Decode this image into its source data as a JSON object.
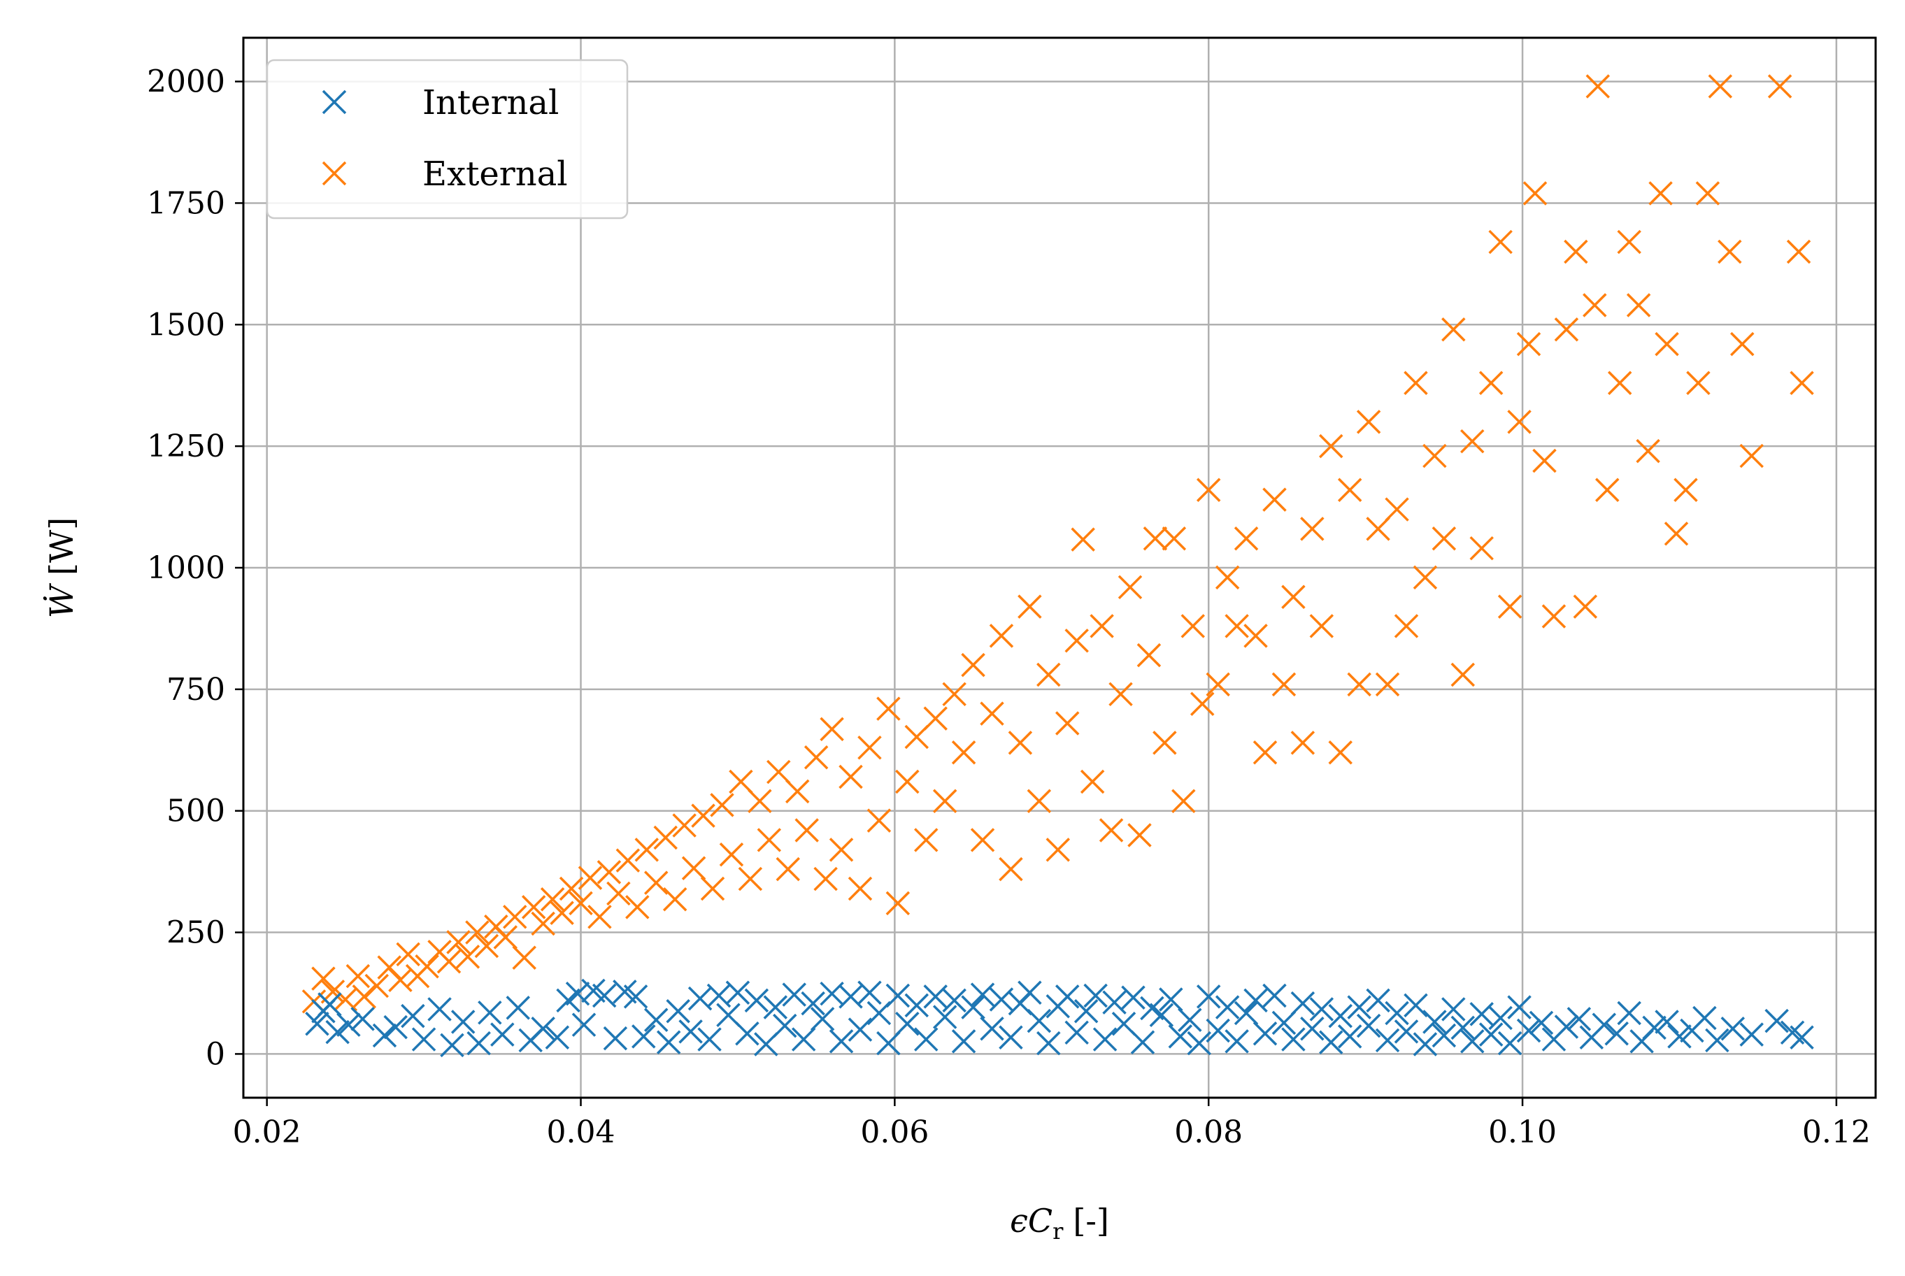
{
  "chart_data": {
    "type": "scatter",
    "marker": "x",
    "xlabel": "ϵC",
    "xlabel_sub": "r",
    "xlabel_unit": "[-]",
    "ylabel": "Ẇ",
    "ylabel_unit": "[W]",
    "xlim": [
      0.0185,
      0.1225
    ],
    "ylim": [
      -90,
      2090
    ],
    "xticks": [
      0.02,
      0.04,
      0.06,
      0.08,
      0.1,
      0.12
    ],
    "xtick_labels": [
      "0.02",
      "0.04",
      "0.06",
      "0.08",
      "0.10",
      "0.12"
    ],
    "yticks": [
      0,
      250,
      500,
      750,
      1000,
      1250,
      1500,
      1750,
      2000
    ],
    "ytick_labels": [
      "0",
      "250",
      "500",
      "750",
      "1000",
      "1250",
      "1500",
      "1750",
      "2000"
    ],
    "grid": true,
    "legend_position": "upper left",
    "series": [
      {
        "name": "Internal",
        "color": "#1f77b4",
        "points": [
          [
            0.0232,
            62
          ],
          [
            0.0236,
            88
          ],
          [
            0.024,
            102
          ],
          [
            0.0245,
            45
          ],
          [
            0.0252,
            60
          ],
          [
            0.0261,
            72
          ],
          [
            0.0275,
            38
          ],
          [
            0.0282,
            55
          ],
          [
            0.0293,
            78
          ],
          [
            0.03,
            30
          ],
          [
            0.031,
            92
          ],
          [
            0.0318,
            18
          ],
          [
            0.0325,
            66
          ],
          [
            0.0335,
            22
          ],
          [
            0.0342,
            85
          ],
          [
            0.035,
            40
          ],
          [
            0.036,
            95
          ],
          [
            0.0368,
            28
          ],
          [
            0.0376,
            52
          ],
          [
            0.0385,
            34
          ],
          [
            0.0392,
            110
          ],
          [
            0.0398,
            124
          ],
          [
            0.0402,
            60
          ],
          [
            0.0408,
            130
          ],
          [
            0.0415,
            120
          ],
          [
            0.0422,
            32
          ],
          [
            0.0428,
            128
          ],
          [
            0.0435,
            118
          ],
          [
            0.044,
            36
          ],
          [
            0.0448,
            70
          ],
          [
            0.0456,
            24
          ],
          [
            0.0462,
            88
          ],
          [
            0.047,
            46
          ],
          [
            0.0476,
            114
          ],
          [
            0.0482,
            30
          ],
          [
            0.0488,
            120
          ],
          [
            0.0494,
            80
          ],
          [
            0.05,
            126
          ],
          [
            0.0506,
            42
          ],
          [
            0.0512,
            110
          ],
          [
            0.0518,
            20
          ],
          [
            0.0524,
            96
          ],
          [
            0.053,
            58
          ],
          [
            0.0536,
            122
          ],
          [
            0.0542,
            30
          ],
          [
            0.0548,
            104
          ],
          [
            0.0554,
            72
          ],
          [
            0.056,
            124
          ],
          [
            0.0566,
            26
          ],
          [
            0.0572,
            118
          ],
          [
            0.0578,
            50
          ],
          [
            0.0584,
            126
          ],
          [
            0.059,
            84
          ],
          [
            0.0596,
            22
          ],
          [
            0.0602,
            120
          ],
          [
            0.0608,
            62
          ],
          [
            0.0614,
            100
          ],
          [
            0.062,
            30
          ],
          [
            0.0626,
            118
          ],
          [
            0.0632,
            76
          ],
          [
            0.0638,
            110
          ],
          [
            0.0644,
            26
          ],
          [
            0.065,
            96
          ],
          [
            0.0656,
            122
          ],
          [
            0.0662,
            52
          ],
          [
            0.0668,
            112
          ],
          [
            0.0674,
            34
          ],
          [
            0.068,
            104
          ],
          [
            0.0686,
            126
          ],
          [
            0.0692,
            68
          ],
          [
            0.0698,
            22
          ],
          [
            0.0704,
            98
          ],
          [
            0.071,
            118
          ],
          [
            0.0716,
            44
          ],
          [
            0.0722,
            88
          ],
          [
            0.0728,
            120
          ],
          [
            0.0734,
            30
          ],
          [
            0.074,
            106
          ],
          [
            0.0746,
            62
          ],
          [
            0.0752,
            116
          ],
          [
            0.0758,
            24
          ],
          [
            0.0764,
            94
          ],
          [
            0.077,
            80
          ],
          [
            0.0776,
            112
          ],
          [
            0.0782,
            36
          ],
          [
            0.0788,
            70
          ],
          [
            0.0794,
            22
          ],
          [
            0.08,
            118
          ],
          [
            0.0806,
            48
          ],
          [
            0.0812,
            96
          ],
          [
            0.0818,
            26
          ],
          [
            0.0824,
            84
          ],
          [
            0.083,
            110
          ],
          [
            0.0836,
            42
          ],
          [
            0.0842,
            120
          ],
          [
            0.0848,
            64
          ],
          [
            0.0854,
            30
          ],
          [
            0.086,
            104
          ],
          [
            0.0866,
            52
          ],
          [
            0.0872,
            92
          ],
          [
            0.0878,
            24
          ],
          [
            0.0884,
            78
          ],
          [
            0.089,
            36
          ],
          [
            0.0896,
            96
          ],
          [
            0.0902,
            58
          ],
          [
            0.0908,
            110
          ],
          [
            0.0914,
            28
          ],
          [
            0.092,
            84
          ],
          [
            0.0926,
            46
          ],
          [
            0.0932,
            100
          ],
          [
            0.0938,
            20
          ],
          [
            0.0944,
            66
          ],
          [
            0.095,
            38
          ],
          [
            0.0956,
            92
          ],
          [
            0.0962,
            54
          ],
          [
            0.0968,
            26
          ],
          [
            0.0974,
            82
          ],
          [
            0.098,
            40
          ],
          [
            0.0986,
            74
          ],
          [
            0.0992,
            22
          ],
          [
            0.0998,
            96
          ],
          [
            0.1004,
            48
          ],
          [
            0.1012,
            64
          ],
          [
            0.102,
            30
          ],
          [
            0.1028,
            56
          ],
          [
            0.1036,
            72
          ],
          [
            0.1044,
            34
          ],
          [
            0.1052,
            60
          ],
          [
            0.106,
            42
          ],
          [
            0.1068,
            84
          ],
          [
            0.1076,
            26
          ],
          [
            0.1084,
            54
          ],
          [
            0.1092,
            66
          ],
          [
            0.11,
            36
          ],
          [
            0.1108,
            48
          ],
          [
            0.1116,
            74
          ],
          [
            0.1124,
            28
          ],
          [
            0.1134,
            52
          ],
          [
            0.1146,
            40
          ],
          [
            0.1162,
            68
          ],
          [
            0.1172,
            44
          ],
          [
            0.1178,
            34
          ]
        ]
      },
      {
        "name": "External",
        "color": "#ff7f0e",
        "points": [
          [
            0.023,
            108
          ],
          [
            0.0236,
            155
          ],
          [
            0.0242,
            128
          ],
          [
            0.025,
            112
          ],
          [
            0.0258,
            160
          ],
          [
            0.0262,
            118
          ],
          [
            0.027,
            140
          ],
          [
            0.0278,
            178
          ],
          [
            0.0285,
            152
          ],
          [
            0.029,
            205
          ],
          [
            0.0296,
            160
          ],
          [
            0.0302,
            180
          ],
          [
            0.031,
            210
          ],
          [
            0.0316,
            190
          ],
          [
            0.0322,
            230
          ],
          [
            0.0328,
            200
          ],
          [
            0.0334,
            250
          ],
          [
            0.034,
            222
          ],
          [
            0.0346,
            262
          ],
          [
            0.0352,
            240
          ],
          [
            0.0358,
            282
          ],
          [
            0.0364,
            198
          ],
          [
            0.037,
            302
          ],
          [
            0.0376,
            268
          ],
          [
            0.0382,
            318
          ],
          [
            0.0388,
            290
          ],
          [
            0.0394,
            340
          ],
          [
            0.04,
            310
          ],
          [
            0.0406,
            362
          ],
          [
            0.0412,
            282
          ],
          [
            0.0418,
            374
          ],
          [
            0.0424,
            330
          ],
          [
            0.043,
            398
          ],
          [
            0.0436,
            302
          ],
          [
            0.0442,
            420
          ],
          [
            0.0448,
            352
          ],
          [
            0.0454,
            445
          ],
          [
            0.046,
            318
          ],
          [
            0.0466,
            470
          ],
          [
            0.0472,
            382
          ],
          [
            0.0478,
            490
          ],
          [
            0.0484,
            340
          ],
          [
            0.049,
            512
          ],
          [
            0.0496,
            410
          ],
          [
            0.0502,
            560
          ],
          [
            0.0508,
            360
          ],
          [
            0.0514,
            520
          ],
          [
            0.052,
            440
          ],
          [
            0.0526,
            580
          ],
          [
            0.0532,
            380
          ],
          [
            0.0538,
            540
          ],
          [
            0.0544,
            460
          ],
          [
            0.055,
            610
          ],
          [
            0.0556,
            360
          ],
          [
            0.056,
            668
          ],
          [
            0.0566,
            420
          ],
          [
            0.0572,
            570
          ],
          [
            0.0578,
            340
          ],
          [
            0.0584,
            630
          ],
          [
            0.059,
            480
          ],
          [
            0.0596,
            710
          ],
          [
            0.0602,
            310
          ],
          [
            0.0608,
            560
          ],
          [
            0.0614,
            652
          ],
          [
            0.062,
            440
          ],
          [
            0.0626,
            690
          ],
          [
            0.0632,
            520
          ],
          [
            0.0638,
            740
          ],
          [
            0.0644,
            620
          ],
          [
            0.065,
            800
          ],
          [
            0.0656,
            440
          ],
          [
            0.0662,
            700
          ],
          [
            0.0668,
            860
          ],
          [
            0.0674,
            380
          ],
          [
            0.068,
            640
          ],
          [
            0.0686,
            920
          ],
          [
            0.0692,
            520
          ],
          [
            0.0698,
            780
          ],
          [
            0.0704,
            420
          ],
          [
            0.071,
            680
          ],
          [
            0.0716,
            850
          ],
          [
            0.072,
            1058
          ],
          [
            0.0726,
            560
          ],
          [
            0.0732,
            880
          ],
          [
            0.0738,
            460
          ],
          [
            0.0744,
            740
          ],
          [
            0.075,
            960
          ],
          [
            0.0756,
            450
          ],
          [
            0.0762,
            820
          ],
          [
            0.0766,
            1060
          ],
          [
            0.0772,
            640
          ],
          [
            0.0778,
            1060
          ],
          [
            0.0784,
            520
          ],
          [
            0.079,
            880
          ],
          [
            0.0796,
            720
          ],
          [
            0.08,
            1160
          ],
          [
            0.0806,
            760
          ],
          [
            0.0812,
            980
          ],
          [
            0.0818,
            880
          ],
          [
            0.0824,
            1060
          ],
          [
            0.083,
            860
          ],
          [
            0.0836,
            620
          ],
          [
            0.0842,
            1140
          ],
          [
            0.0848,
            760
          ],
          [
            0.0854,
            940
          ],
          [
            0.086,
            640
          ],
          [
            0.0866,
            1080
          ],
          [
            0.0872,
            880
          ],
          [
            0.0878,
            1250
          ],
          [
            0.0884,
            620
          ],
          [
            0.089,
            1160
          ],
          [
            0.0896,
            760
          ],
          [
            0.0902,
            1300
          ],
          [
            0.0908,
            1080
          ],
          [
            0.0914,
            760
          ],
          [
            0.092,
            1120
          ],
          [
            0.0926,
            880
          ],
          [
            0.0932,
            1380
          ],
          [
            0.0938,
            980
          ],
          [
            0.0944,
            1230
          ],
          [
            0.095,
            1060
          ],
          [
            0.0956,
            1490
          ],
          [
            0.0962,
            780
          ],
          [
            0.0968,
            1260
          ],
          [
            0.0974,
            1040
          ],
          [
            0.098,
            1380
          ],
          [
            0.0986,
            1670
          ],
          [
            0.0992,
            920
          ],
          [
            0.0998,
            1300
          ],
          [
            0.1004,
            1460
          ],
          [
            0.1008,
            1770
          ],
          [
            0.1014,
            1220
          ],
          [
            0.102,
            900
          ],
          [
            0.1028,
            1490
          ],
          [
            0.1034,
            1650
          ],
          [
            0.104,
            920
          ],
          [
            0.1046,
            1540
          ],
          [
            0.1048,
            1990
          ],
          [
            0.1054,
            1160
          ],
          [
            0.1062,
            1380
          ],
          [
            0.1068,
            1670
          ],
          [
            0.1074,
            1540
          ],
          [
            0.108,
            1240
          ],
          [
            0.1088,
            1770
          ],
          [
            0.1092,
            1460
          ],
          [
            0.1098,
            1070
          ],
          [
            0.1104,
            1160
          ],
          [
            0.1112,
            1380
          ],
          [
            0.1118,
            1770
          ],
          [
            0.1126,
            1990
          ],
          [
            0.1132,
            1650
          ],
          [
            0.114,
            1460
          ],
          [
            0.1146,
            1230
          ],
          [
            0.1164,
            1990
          ],
          [
            0.1176,
            1650
          ],
          [
            0.1178,
            1380
          ]
        ]
      }
    ]
  }
}
